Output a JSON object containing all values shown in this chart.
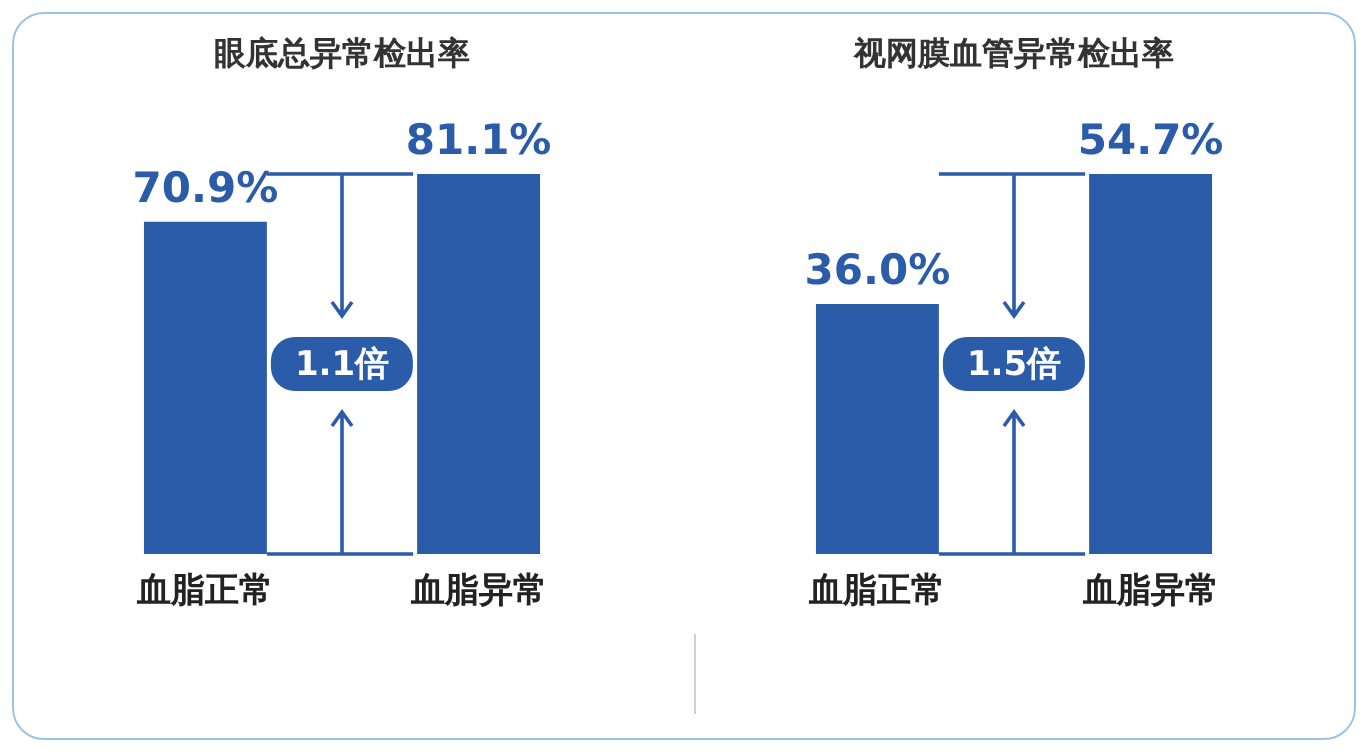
{
  "chart_data": [
    {
      "type": "bar",
      "title": "眼底总异常检出率",
      "categories": [
        "血脂正常",
        "血脂异常"
      ],
      "values": [
        70.9,
        81.1
      ],
      "value_labels": [
        "70.9%",
        "81.1%"
      ],
      "color": "#2a5caa",
      "annotations": [
        "1.1倍"
      ],
      "tick_labels": "x"
    },
    {
      "type": "bar",
      "title": "视网膜血管异常检出率",
      "categories": [
        "血脂正常",
        "血脂异常"
      ],
      "values": [
        36.0,
        54.7
      ],
      "value_labels": [
        "36.0%",
        "54.7%"
      ],
      "color": "#2a5caa",
      "annotations": [
        "1.5倍"
      ],
      "tick_labels": "x"
    }
  ]
}
